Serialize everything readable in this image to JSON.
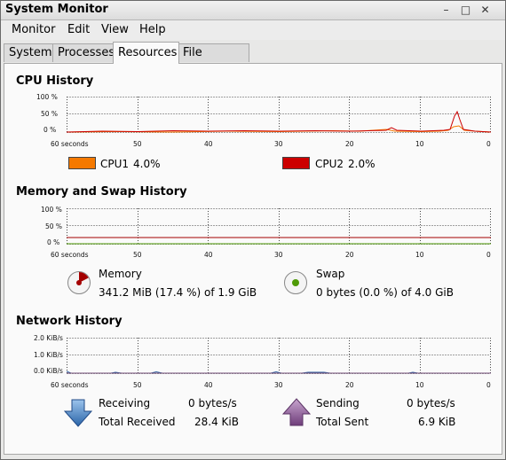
{
  "window": {
    "title": "System Monitor",
    "min": "–",
    "max": "□",
    "close": "✕"
  },
  "menu": [
    "Monitor",
    "Edit",
    "View",
    "Help"
  ],
  "tabs": [
    "System",
    "Processes",
    "Resources",
    "File Systems"
  ],
  "active_tab": "Resources",
  "cpu": {
    "title": "CPU History",
    "y_ticks": [
      "100 %",
      "50 %",
      "0 %"
    ],
    "x_ticks": [
      "60 seconds",
      "50",
      "40",
      "30",
      "20",
      "10",
      "0"
    ],
    "cpu1_label": "CPU1",
    "cpu1_value": "4.0%",
    "cpu1_color": "#f57900",
    "cpu2_label": "CPU2",
    "cpu2_value": "2.0%",
    "cpu2_color": "#cc0000"
  },
  "memory": {
    "title": "Memory and Swap History",
    "y_ticks": [
      "100 %",
      "50 %",
      "0 %"
    ],
    "x_ticks": [
      "60 seconds",
      "50",
      "40",
      "30",
      "20",
      "10",
      "0"
    ],
    "memory_label": "Memory",
    "memory_value": "341.2 MiB (17.4 %) of 1.9 GiB",
    "memory_color": "#a40000",
    "memory_fraction": 0.174,
    "swap_label": "Swap",
    "swap_value": "0 bytes (0.0 %) of 4.0 GiB",
    "swap_color": "#4e9a06",
    "swap_fraction": 0.0
  },
  "network": {
    "title": "Network History",
    "y_ticks": [
      "2.0 KiB/s",
      "1.0 KiB/s",
      "0.0 KiB/s"
    ],
    "x_ticks": [
      "60 seconds",
      "50",
      "40",
      "30",
      "20",
      "10",
      "0"
    ],
    "receiving_label": "Receiving",
    "receiving_value": "0 bytes/s",
    "total_received_label": "Total Received",
    "total_received_value": "28.4 KiB",
    "sending_label": "Sending",
    "sending_value": "0 bytes/s",
    "total_sent_label": "Total Sent",
    "total_sent_value": "6.9 KiB",
    "receive_color": "#3465a4",
    "send_color": "#75507b"
  }
}
